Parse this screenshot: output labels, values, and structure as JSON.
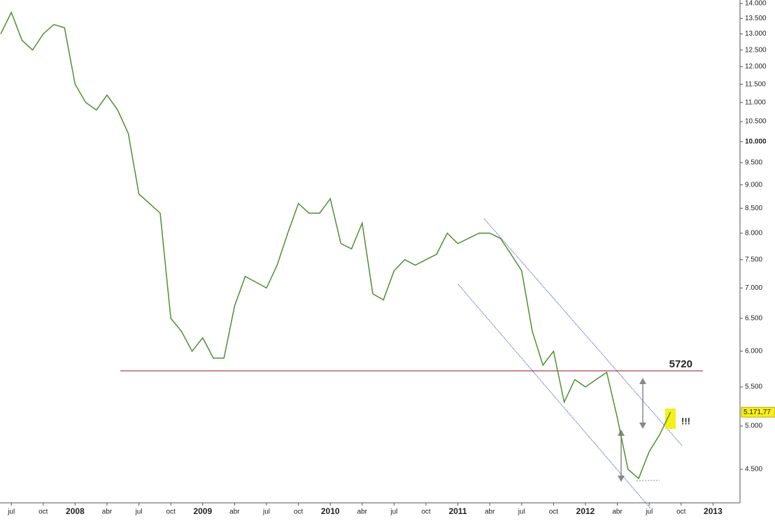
{
  "chart_data": {
    "type": "line",
    "scale": "log",
    "categories": [
      null,
      "jul",
      null,
      null,
      "oct",
      null,
      null,
      "2008",
      null,
      null,
      "abr",
      null,
      null,
      "jul",
      null,
      null,
      "oct",
      null,
      null,
      "2009",
      null,
      null,
      "abr",
      null,
      null,
      "jul",
      null,
      null,
      "oct",
      null,
      null,
      "2010",
      null,
      null,
      "abr",
      null,
      null,
      "jul",
      null,
      null,
      "oct",
      null,
      null,
      "2011",
      null,
      null,
      "abr",
      null,
      null,
      "jul",
      null,
      null,
      "oct",
      null,
      null,
      "2012",
      null,
      null,
      "abr",
      null,
      null,
      "jul",
      null,
      null,
      "oct",
      null,
      null,
      "2013"
    ],
    "series": [
      {
        "color": "#4f8f2f",
        "values": [
          13000,
          13700,
          12800,
          12500,
          13000,
          13300,
          13200,
          11500,
          11000,
          10800,
          11200,
          10800,
          10200,
          8800,
          8600,
          8400,
          6500,
          6300,
          6000,
          6200,
          5900,
          5900,
          6700,
          7200,
          7100,
          7000,
          7400,
          8000,
          8600,
          8400,
          8400,
          8700,
          7800,
          7700,
          8200,
          6900,
          6800,
          7300,
          7500,
          7400,
          7500,
          7600,
          8000,
          7800,
          7900,
          8000,
          8000,
          7900,
          7600,
          7300,
          6300,
          5800,
          6000,
          5300,
          5600,
          5500,
          5600,
          5700,
          5100,
          4500,
          4400,
          4700,
          4900,
          5171.77,
          null,
          null,
          null,
          null
        ],
        "value_labels": [
          null,
          null,
          null,
          null,
          null,
          null,
          null,
          null,
          null,
          null,
          null,
          null,
          null,
          null,
          null,
          null,
          null,
          null,
          null,
          null,
          null,
          null,
          null,
          null,
          null,
          null,
          null,
          null,
          null,
          null,
          null,
          null,
          null,
          null,
          null,
          null,
          null,
          null,
          null,
          null,
          null,
          null,
          null,
          null,
          null,
          null,
          null,
          null,
          null,
          null,
          null,
          null,
          null,
          null,
          null,
          null,
          null,
          null,
          null,
          null,
          null,
          null,
          null,
          "5.171,77",
          null,
          null,
          null,
          null
        ]
      }
    ],
    "ylim": [
      4147,
      14120
    ],
    "yticks": [
      {
        "value": 4500,
        "label": "4.500"
      },
      {
        "value": 5000,
        "label": "5.000"
      },
      {
        "value": 5500,
        "label": "5.500"
      },
      {
        "value": 6000,
        "label": "6.000"
      },
      {
        "value": 6500,
        "label": "6.500"
      },
      {
        "value": 7000,
        "label": "7.000"
      },
      {
        "value": 7500,
        "label": "7.500"
      },
      {
        "value": 8000,
        "label": "8.000"
      },
      {
        "value": 8500,
        "label": "8.500"
      },
      {
        "value": 9000,
        "label": "9.000"
      },
      {
        "value": 9500,
        "label": "9.500"
      },
      {
        "value": 10000,
        "label": "10.000"
      },
      {
        "value": 10500,
        "label": "10.500"
      },
      {
        "value": 11000,
        "label": "11.000"
      },
      {
        "value": 11500,
        "label": "11.500"
      },
      {
        "value": 12000,
        "label": "12.000"
      },
      {
        "value": 12500,
        "label": "12.500"
      },
      {
        "value": 13000,
        "label": "13.000"
      },
      {
        "value": 13500,
        "label": "13.500"
      },
      {
        "value": 14000,
        "label": "14.000"
      }
    ],
    "reference_line": 5720,
    "reference_color": "#8b1a1a",
    "annotation": "!!!"
  }
}
